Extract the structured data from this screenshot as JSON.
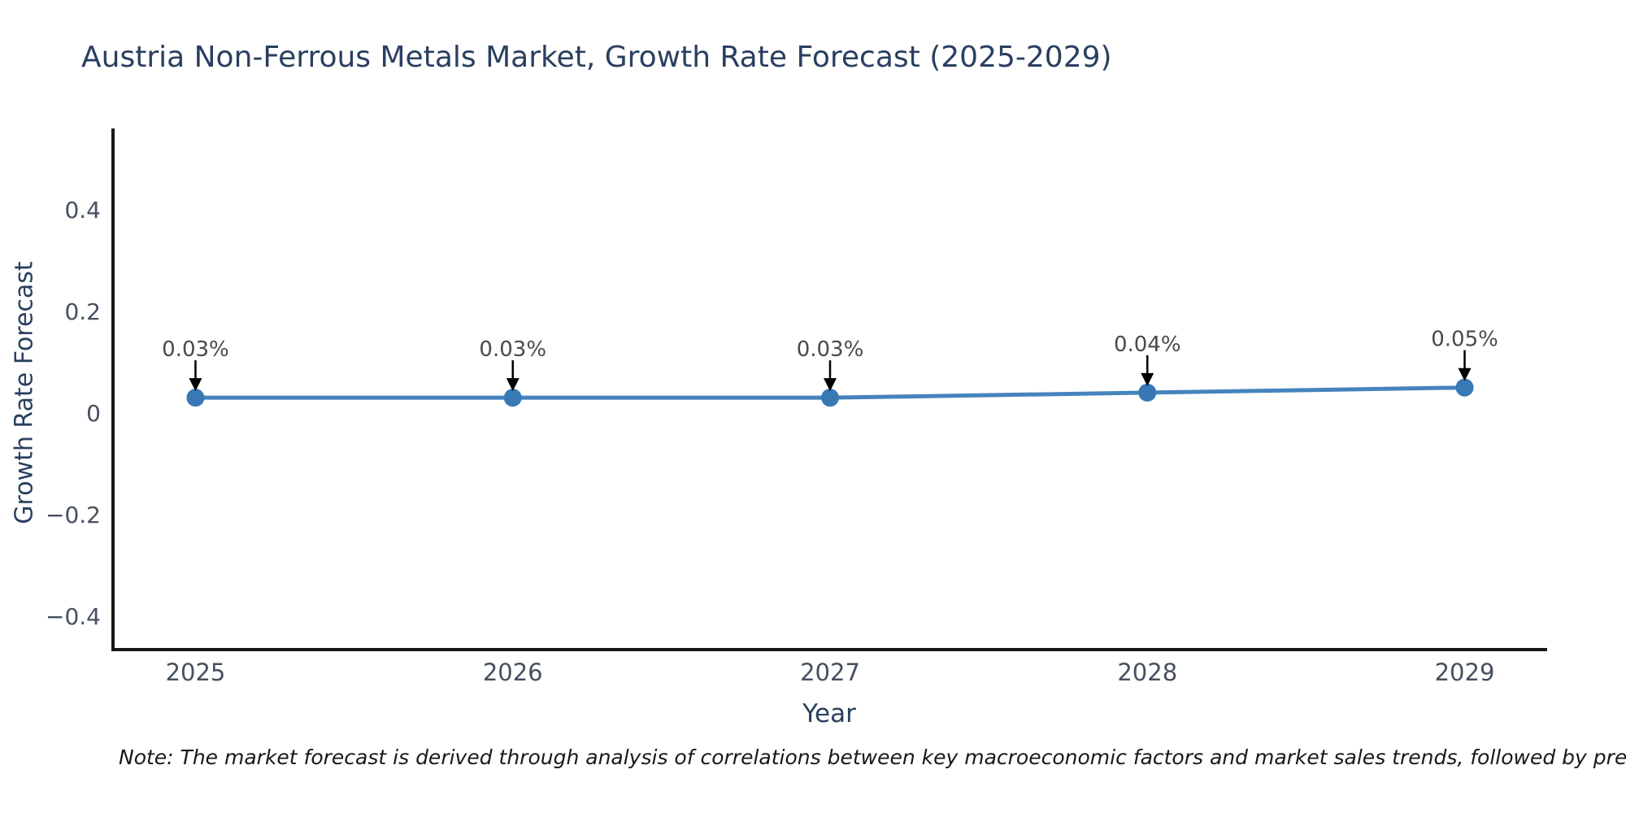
{
  "title": "Austria Non-Ferrous Metals Market, Growth Rate Forecast (2025-2029)",
  "note": "Note: The market forecast is derived through analysis of correlations between key macroeconomic factors and market sales trends, followed by predictive modeling to project future sa",
  "chart_data": {
    "type": "line",
    "title": "Austria Non-Ferrous Metals Market, Growth Rate Forecast (2025-2029)",
    "xlabel": "Year",
    "ylabel": "Growth Rate Forecast",
    "x": [
      2025,
      2026,
      2027,
      2028,
      2029
    ],
    "xtick_labels": [
      "2025",
      "2026",
      "2027",
      "2028",
      "2029"
    ],
    "series": [
      {
        "name": "Growth Rate Forecast",
        "values": [
          0.03,
          0.03,
          0.03,
          0.04,
          0.05
        ]
      }
    ],
    "point_labels": [
      "0.03%",
      "0.03%",
      "0.03%",
      "0.04%",
      "0.05%"
    ],
    "yticks": [
      0.4,
      0.2,
      0,
      -0.2,
      -0.4
    ],
    "ytick_labels": [
      "0.4",
      "0.2",
      "0",
      "−0.2",
      "−0.4"
    ],
    "xlim": [
      2024.74,
      2029.26
    ],
    "ylim": [
      -0.466,
      0.557
    ],
    "grid": false,
    "legend": "none",
    "colors": {
      "line": "#4584bd",
      "marker": "#3878b5",
      "annotation_arrow": "#000000",
      "annotation_text": "#4a4a4a",
      "axis_line": "#14171c",
      "tick_text": "#475060",
      "title_text": "#2a3f5f"
    }
  }
}
